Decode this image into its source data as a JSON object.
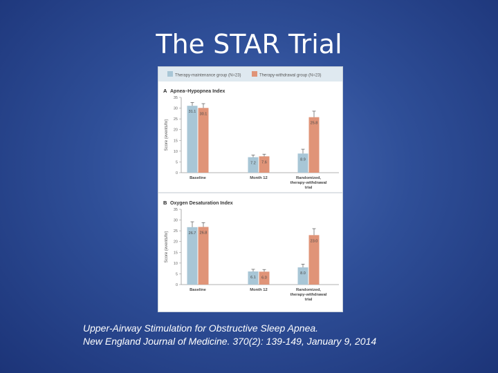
{
  "slide": {
    "title": "The STAR Trial",
    "caption_line1": "Upper-Airway Stimulation for Obstructive Sleep Apnea.",
    "caption_line2": "New England Journal of Medicine. 370(2): 139-149, January 9, 2014"
  },
  "colors": {
    "maintenance": "#a8c6d6",
    "withdrawal": "#e09478"
  },
  "chart_data": [
    {
      "type": "bar",
      "panel_letter": "A",
      "title": "Apnea–Hypopnea Index",
      "ylabel": "Score (events/hr)",
      "ylim": [
        0,
        35
      ],
      "yticks": [
        0,
        5,
        10,
        15,
        20,
        25,
        30,
        35
      ],
      "categories": [
        "Baseline",
        "Month 12",
        "Randomized, therapy-withdrawal trial"
      ],
      "series": [
        {
          "name": "Therapy-maintenance group (N=23)",
          "values": [
            31.1,
            7.2,
            8.9
          ],
          "value_labels": [
            "31.1",
            "7.2",
            "8.9"
          ],
          "errors": [
            1.5,
            1.0,
            2.0
          ]
        },
        {
          "name": "Therapy-withdrawal group (N=23)",
          "values": [
            30.1,
            7.6,
            25.8
          ],
          "value_labels": [
            "30.1",
            "7.6",
            "25.8"
          ],
          "errors": [
            2.0,
            1.0,
            2.8
          ]
        }
      ]
    },
    {
      "type": "bar",
      "panel_letter": "B",
      "title": "Oxygen Desaturation Index",
      "ylabel": "Score (events/hr)",
      "ylim": [
        0,
        35
      ],
      "yticks": [
        0,
        5,
        10,
        15,
        20,
        25,
        30,
        35
      ],
      "categories": [
        "Baseline",
        "Month 12",
        "Randomized, therapy-withdrawal trial"
      ],
      "series": [
        {
          "name": "Therapy-maintenance group (N=23)",
          "values": [
            26.7,
            6.1,
            8.0
          ],
          "value_labels": [
            "26.7",
            "6.1",
            "8.0"
          ],
          "errors": [
            2.5,
            1.0,
            1.5
          ]
        },
        {
          "name": "Therapy-withdrawal group (N=23)",
          "values": [
            26.8,
            6.0,
            23.0
          ],
          "value_labels": [
            "26.8",
            "6.0",
            "23.0"
          ],
          "errors": [
            2.0,
            1.0,
            3.0
          ]
        }
      ]
    }
  ]
}
